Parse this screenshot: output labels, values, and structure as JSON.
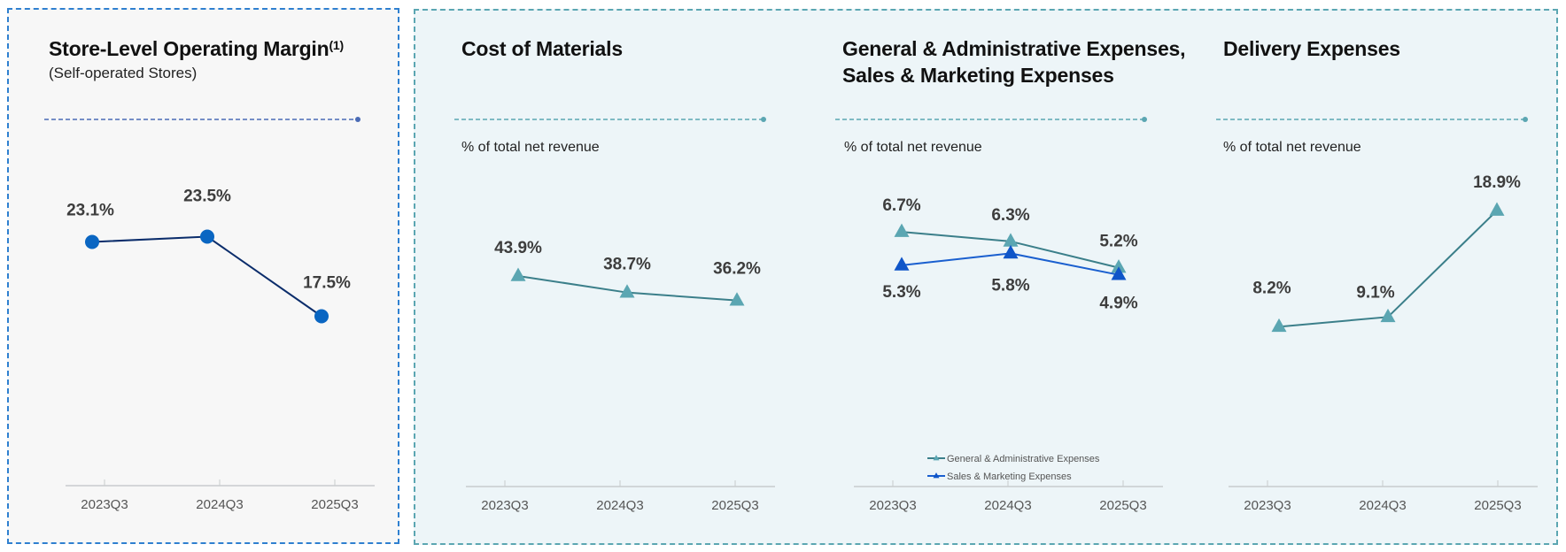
{
  "colors": {
    "left_border": "#2f80d0",
    "right_border": "#5ba6b2",
    "left_bg": "#f7f7f7",
    "right_bg": "#edf5f8",
    "margin_line": "#0b2d6b",
    "margin_marker": "#0a66c2",
    "teal_line": "#3b7f8a",
    "teal_marker": "#5ba6b2",
    "blue_line": "#1a5fcf",
    "blue_marker": "#0f55c8",
    "left_header_line": "#4a6bb5",
    "right_header_line": "#5ba6b2"
  },
  "panels": {
    "margin": {
      "title": "Store-Level Operating Margin",
      "title_sup": "(1)",
      "subtitle": "(Self-operated Stores)"
    },
    "cost": {
      "title": "Cost of Materials",
      "unit": "% of total net revenue"
    },
    "ga_sm": {
      "title_line1": "General & Administrative Expenses,",
      "title_line2": "Sales & Marketing Expenses",
      "unit": "% of total net revenue"
    },
    "delivery": {
      "title": "Delivery Expenses",
      "unit": "% of total net revenue"
    }
  },
  "chart_data": [
    {
      "id": "margin",
      "type": "line",
      "title": "Store-Level Operating Margin(1) (Self-operated Stores)",
      "categories": [
        "2023Q3",
        "2024Q3",
        "2025Q3"
      ],
      "series": [
        {
          "name": "Store-Level Operating Margin",
          "values": [
            23.1,
            23.5,
            17.5
          ],
          "labels": [
            "23.1%",
            "23.5%",
            "17.5%"
          ],
          "marker": "circle"
        }
      ],
      "ylim": [
        10,
        28
      ],
      "grid": false,
      "legend": "none"
    },
    {
      "id": "cost",
      "type": "line",
      "title": "Cost of Materials",
      "ylabel": "% of total net revenue",
      "categories": [
        "2023Q3",
        "2024Q3",
        "2025Q3"
      ],
      "series": [
        {
          "name": "Cost of Materials",
          "values": [
            43.9,
            38.7,
            36.2
          ],
          "labels": [
            "43.9%",
            "38.7%",
            "36.2%"
          ],
          "marker": "triangle"
        }
      ],
      "ylim": [
        0,
        75
      ],
      "grid": false,
      "legend": "none"
    },
    {
      "id": "ga_sm",
      "type": "line",
      "title": "General & Administrative Expenses, Sales & Marketing Expenses",
      "ylabel": "% of total net revenue",
      "categories": [
        "2023Q3",
        "2024Q3",
        "2025Q3"
      ],
      "series": [
        {
          "name": "General & Administrative Expenses",
          "values": [
            6.7,
            6.3,
            5.2
          ],
          "labels": [
            "6.7%",
            "6.3%",
            "5.2%"
          ],
          "marker": "triangle"
        },
        {
          "name": "Sales & Marketing Expenses",
          "values": [
            5.3,
            5.8,
            4.9
          ],
          "labels": [
            "5.3%",
            "5.8%",
            "4.9%"
          ],
          "marker": "triangle"
        }
      ],
      "ylim": [
        -1,
        9
      ],
      "grid": false,
      "legend": "bottom-center"
    },
    {
      "id": "delivery",
      "type": "line",
      "title": "Delivery Expenses",
      "ylabel": "% of total net revenue",
      "categories": [
        "2023Q3",
        "2024Q3",
        "2025Q3"
      ],
      "series": [
        {
          "name": "Delivery Expenses",
          "values": [
            8.2,
            9.1,
            18.9
          ],
          "labels": [
            "8.2%",
            "9.1%",
            "18.9%"
          ],
          "marker": "triangle"
        }
      ],
      "ylim": [
        0,
        22
      ],
      "grid": false,
      "legend": "none"
    }
  ]
}
